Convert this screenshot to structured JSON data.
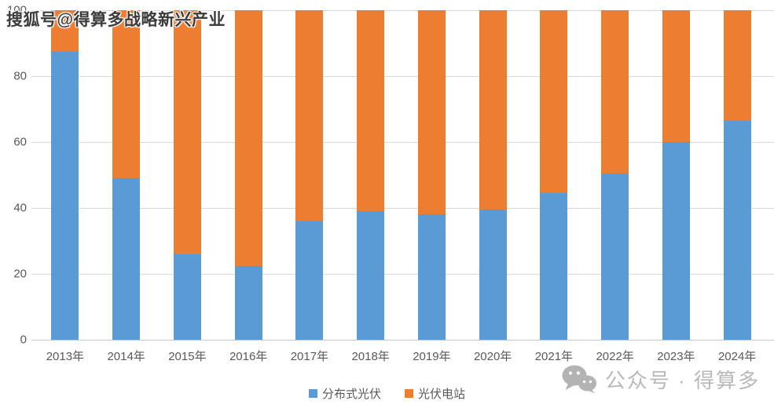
{
  "watermarks": {
    "top": "搜狐号@得算多战略新兴产业",
    "bottom": "公众号 · 得算多"
  },
  "chart_data": {
    "type": "bar",
    "stacked": true,
    "stacked_percent": true,
    "title": "",
    "xlabel": "",
    "ylabel": "",
    "categories": [
      "2013年",
      "2014年",
      "2015年",
      "2016年",
      "2017年",
      "2018年",
      "2019年",
      "2020年",
      "2021年",
      "2022年",
      "2023年",
      "2024年"
    ],
    "series": [
      {
        "name": "分布式光伏",
        "color": "#5B9BD5",
        "values": [
          87.5,
          49,
          26,
          22.5,
          36,
          39,
          38,
          39.5,
          44.5,
          50.5,
          60,
          66.5
        ]
      },
      {
        "name": "光伏电站",
        "color": "#ED7D31",
        "values": [
          12.5,
          51,
          74,
          77.5,
          64,
          61,
          62,
          60.5,
          55.5,
          49.5,
          40,
          33.5
        ]
      }
    ],
    "ylim": [
      0,
      100
    ],
    "yticks": [
      0,
      20,
      40,
      60,
      80,
      100
    ],
    "grid": true,
    "gridline_color": "#d9d9d9",
    "tick_label_color": "#595959",
    "legend_position": "bottom"
  }
}
